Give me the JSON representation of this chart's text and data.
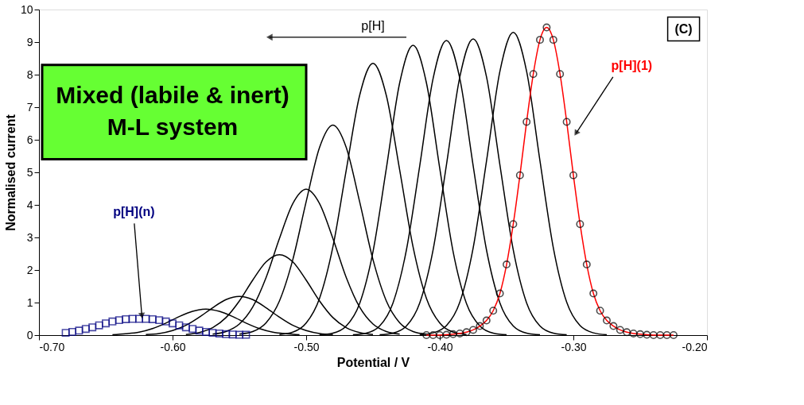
{
  "chart_data": {
    "type": "line",
    "xlabel": "Potential / V",
    "ylabel": "Normalised current",
    "xlim": [
      -0.7,
      -0.2
    ],
    "xticks": [
      {
        "value": -0.7,
        "label": "-0.70"
      },
      {
        "value": -0.6,
        "label": "-0.60"
      },
      {
        "value": -0.5,
        "label": "-0.50"
      },
      {
        "value": -0.4,
        "label": "-0.40"
      },
      {
        "value": -0.3,
        "label": "-0.30"
      },
      {
        "value": -0.2,
        "label": "-0.20"
      }
    ],
    "ylim": [
      0,
      10
    ],
    "yticks": [
      0,
      1,
      2,
      3,
      4,
      5,
      6,
      7,
      8,
      9,
      10
    ],
    "grid": false,
    "annotations": [
      "p[H]",
      "(C)",
      "Mixed (labile & inert)\nM-L system",
      {
        "text": "p[H](1)",
        "x": -0.298,
        "y": 6.2
      },
      {
        "text": "p[H](n)",
        "x": -0.623,
        "y": 0.6
      }
    ],
    "series": [
      {
        "color": "#000000",
        "x": [
          -0.415,
          -0.405,
          -0.395,
          -0.385,
          -0.375,
          -0.365,
          -0.355,
          -0.345,
          -0.335,
          -0.325,
          -0.315,
          -0.305,
          -0.295,
          -0.285,
          -0.275
        ],
        "values": [
          0.01,
          0.07,
          0.29,
          1.01,
          2.68,
          5.35,
          8.1,
          9.3,
          8.1,
          5.35,
          2.68,
          1.01,
          0.29,
          0.07,
          0.01
        ]
      },
      {
        "color": "#000000",
        "x": [
          -0.445,
          -0.435,
          -0.425,
          -0.415,
          -0.405,
          -0.395,
          -0.385,
          -0.375,
          -0.365,
          -0.355,
          -0.345,
          -0.335,
          -0.325,
          -0.315,
          -0.305
        ],
        "values": [
          0.01,
          0.06,
          0.28,
          0.99,
          2.62,
          5.23,
          7.93,
          9.1,
          7.93,
          5.23,
          2.62,
          0.99,
          0.28,
          0.06,
          0.01
        ]
      },
      {
        "color": "#000000",
        "x": [
          -0.465,
          -0.455,
          -0.445,
          -0.435,
          -0.425,
          -0.415,
          -0.405,
          -0.395,
          -0.385,
          -0.375,
          -0.365,
          -0.355,
          -0.345,
          -0.335,
          -0.325
        ],
        "values": [
          0.01,
          0.06,
          0.28,
          0.99,
          2.61,
          5.2,
          7.88,
          9.05,
          7.88,
          5.2,
          2.61,
          0.99,
          0.28,
          0.06,
          0.01
        ]
      },
      {
        "color": "#000000",
        "x": [
          -0.49,
          -0.48,
          -0.47,
          -0.46,
          -0.45,
          -0.44,
          -0.43,
          -0.42,
          -0.41,
          -0.4,
          -0.39,
          -0.38,
          -0.37,
          -0.36,
          -0.35
        ],
        "values": [
          0.01,
          0.06,
          0.28,
          0.97,
          2.56,
          5.12,
          7.75,
          8.9,
          7.75,
          5.12,
          2.56,
          0.97,
          0.28,
          0.06,
          0.01
        ]
      },
      {
        "color": "#000000",
        "x": [
          -0.52,
          -0.51,
          -0.5,
          -0.49,
          -0.48,
          -0.47,
          -0.46,
          -0.45,
          -0.44,
          -0.43,
          -0.42,
          -0.41,
          -0.4,
          -0.39,
          -0.38
        ],
        "values": [
          0.02,
          0.09,
          0.37,
          1.13,
          2.71,
          5.07,
          7.36,
          8.35,
          7.36,
          5.07,
          2.71,
          1.13,
          0.37,
          0.09,
          0.02
        ]
      },
      {
        "color": "#000000",
        "x": [
          -0.55,
          -0.54,
          -0.53,
          -0.52,
          -0.51,
          -0.5,
          -0.49,
          -0.48,
          -0.47,
          -0.46,
          -0.45,
          -0.44,
          -0.43,
          -0.42,
          -0.41
        ],
        "values": [
          0.03,
          0.11,
          0.38,
          1.05,
          2.32,
          4.1,
          5.76,
          6.45,
          5.76,
          4.1,
          2.32,
          1.05,
          0.38,
          0.11,
          0.03
        ]
      },
      {
        "color": "#000000",
        "x": [
          -0.57,
          -0.56,
          -0.55,
          -0.54,
          -0.53,
          -0.52,
          -0.51,
          -0.5,
          -0.49,
          -0.48,
          -0.47,
          -0.46,
          -0.45,
          -0.44,
          -0.43
        ],
        "values": [
          0.03,
          0.11,
          0.34,
          0.86,
          1.77,
          2.97,
          4.04,
          4.48,
          4.04,
          2.97,
          1.77,
          0.86,
          0.34,
          0.11,
          0.03
        ]
      },
      {
        "color": "#000000",
        "x": [
          -0.59,
          -0.58,
          -0.57,
          -0.56,
          -0.55,
          -0.54,
          -0.53,
          -0.52,
          -0.51,
          -0.5,
          -0.49,
          -0.48,
          -0.47,
          -0.46,
          -0.45
        ],
        "values": [
          0.02,
          0.08,
          0.23,
          0.54,
          1.05,
          1.69,
          2.25,
          2.47,
          2.25,
          1.69,
          1.05,
          0.54,
          0.23,
          0.08,
          0.02
        ]
      },
      {
        "color": "#000000",
        "x": [
          -0.62,
          -0.61,
          -0.6,
          -0.59,
          -0.58,
          -0.57,
          -0.56,
          -0.55,
          -0.54,
          -0.53,
          -0.52,
          -0.51,
          -0.5,
          -0.49,
          -0.48
        ],
        "values": [
          0.02,
          0.05,
          0.14,
          0.3,
          0.55,
          0.84,
          1.09,
          1.19,
          1.09,
          0.84,
          0.55,
          0.3,
          0.14,
          0.05,
          0.02
        ]
      },
      {
        "color": "#000000",
        "x": [
          -0.645,
          -0.635,
          -0.625,
          -0.615,
          -0.605,
          -0.595,
          -0.585,
          -0.575,
          -0.565,
          -0.555,
          -0.545,
          -0.535,
          -0.525,
          -0.515,
          -0.505
        ],
        "values": [
          0.01,
          0.04,
          0.09,
          0.2,
          0.37,
          0.57,
          0.73,
          0.8,
          0.73,
          0.57,
          0.37,
          0.2,
          0.09,
          0.04,
          0.01
        ]
      },
      {
        "color": "#ff0000",
        "x": [
          -0.41,
          -0.405,
          -0.4,
          -0.395,
          -0.39,
          -0.385,
          -0.38,
          -0.375,
          -0.37,
          -0.365,
          -0.36,
          -0.355,
          -0.35,
          -0.345,
          -0.34,
          -0.335,
          -0.33,
          -0.325,
          -0.32,
          -0.315,
          -0.31,
          -0.305,
          -0.3,
          -0.295,
          -0.29,
          -0.285,
          -0.28,
          -0.275,
          -0.27,
          -0.265,
          -0.26,
          -0.255,
          -0.25,
          -0.245,
          -0.24,
          -0.235,
          -0.23,
          -0.225
        ],
        "values": [
          0,
          0,
          0,
          0.01,
          0.03,
          0.05,
          0.09,
          0.16,
          0.28,
          0.45,
          0.75,
          1.28,
          2.17,
          3.41,
          4.91,
          6.55,
          8.02,
          9.07,
          9.45,
          9.07,
          8.02,
          6.55,
          4.91,
          3.41,
          2.17,
          1.28,
          0.75,
          0.45,
          0.28,
          0.16,
          0.09,
          0.05,
          0.03,
          0.01,
          0,
          0,
          0,
          0
        ]
      },
      {
        "type": "scatter",
        "marker": "circle",
        "color": "#000000",
        "x": [
          -0.41,
          -0.405,
          -0.4,
          -0.395,
          -0.39,
          -0.385,
          -0.38,
          -0.375,
          -0.37,
          -0.365,
          -0.36,
          -0.355,
          -0.35,
          -0.345,
          -0.34,
          -0.335,
          -0.33,
          -0.325,
          -0.32,
          -0.315,
          -0.31,
          -0.305,
          -0.3,
          -0.295,
          -0.29,
          -0.285,
          -0.28,
          -0.275,
          -0.27,
          -0.265,
          -0.26,
          -0.255,
          -0.25,
          -0.245,
          -0.24,
          -0.235,
          -0.23,
          -0.225
        ],
        "values": [
          0,
          0,
          0,
          0.01,
          0.03,
          0.05,
          0.09,
          0.16,
          0.28,
          0.45,
          0.75,
          1.28,
          2.17,
          3.41,
          4.91,
          6.55,
          8.02,
          9.07,
          9.45,
          9.07,
          8.02,
          6.55,
          4.91,
          3.41,
          2.17,
          1.28,
          0.75,
          0.45,
          0.28,
          0.16,
          0.09,
          0.05,
          0.03,
          0.01,
          0,
          0,
          0,
          0
        ]
      },
      {
        "type": "scatter",
        "marker": "square",
        "color": "#000080",
        "x": [
          -0.68,
          -0.675,
          -0.67,
          -0.665,
          -0.66,
          -0.655,
          -0.65,
          -0.645,
          -0.64,
          -0.635,
          -0.63,
          -0.625,
          -0.62,
          -0.615,
          -0.61,
          -0.605,
          -0.6,
          -0.595,
          -0.59,
          -0.585,
          -0.58,
          -0.575,
          -0.57,
          -0.565,
          -0.56,
          -0.555,
          -0.55,
          -0.545
        ],
        "values": [
          0.07,
          0.1,
          0.14,
          0.19,
          0.24,
          0.3,
          0.36,
          0.42,
          0.46,
          0.49,
          0.5,
          0.5,
          0.5,
          0.49,
          0.46,
          0.42,
          0.36,
          0.3,
          0.24,
          0.19,
          0.14,
          0.1,
          0.07,
          0.05,
          0.03,
          0.02,
          0.01,
          0.01
        ]
      }
    ]
  }
}
